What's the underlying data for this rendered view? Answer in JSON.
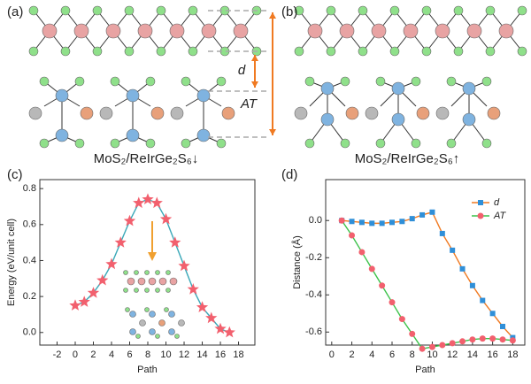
{
  "panels": {
    "a": {
      "label": "(a)",
      "d_label": "d",
      "at_label": "AT",
      "caption": "MoS₂/ReIrGe₂S₆↓"
    },
    "b": {
      "label": "(b)",
      "caption": "MoS₂/ReIrGe₂S₆↑"
    },
    "c": {
      "label": "(c)"
    },
    "d": {
      "label": "(d)"
    }
  },
  "chart_data": [
    {
      "type": "line",
      "xlabel": "Path",
      "ylabel": "Energy (eV/unit cell)",
      "x": [
        0,
        1,
        2,
        3,
        4,
        5,
        6,
        7,
        8,
        9,
        10,
        11,
        12,
        13,
        14,
        15,
        16,
        17
      ],
      "series": [
        {
          "name": null,
          "color": "#3aa8b8",
          "marker_color": "#f2606e",
          "values": [
            0.15,
            0.17,
            0.22,
            0.29,
            0.38,
            0.5,
            0.62,
            0.72,
            0.74,
            0.72,
            0.63,
            0.5,
            0.37,
            0.24,
            0.14,
            0.08,
            0.02,
            0.0
          ]
        }
      ],
      "xlim": [
        -3.9,
        19.8
      ],
      "ylim": [
        -0.07,
        0.85
      ],
      "xticks": [
        -2,
        0,
        2,
        4,
        6,
        8,
        10,
        12,
        14,
        16,
        18
      ],
      "yticks": [
        {
          "value": 0,
          "label": "0.0"
        },
        0.2,
        0.4,
        0.6,
        0.8
      ]
    },
    {
      "type": "line",
      "xlabel": "Path",
      "ylabel": "Distance (Å)",
      "x": [
        1,
        2,
        3,
        4,
        5,
        6,
        7,
        8,
        9,
        10,
        11,
        12,
        13,
        14,
        15,
        16,
        17,
        18
      ],
      "series": [
        {
          "name": "d",
          "color": "#f07a22",
          "marker_color": "#2f8fd8",
          "marker": "square",
          "values": [
            0,
            -0.005,
            -0.01,
            -0.015,
            -0.015,
            -0.01,
            -0.005,
            0.01,
            0.03,
            0.045,
            -0.07,
            -0.16,
            -0.26,
            -0.35,
            -0.43,
            -0.5,
            -0.57,
            -0.63
          ]
        },
        {
          "name": "AT",
          "color": "#3cc24a",
          "marker_color": "#f2606e",
          "marker": "circle",
          "values": [
            0,
            -0.08,
            -0.17,
            -0.26,
            -0.35,
            -0.44,
            -0.53,
            -0.61,
            -0.69,
            -0.68,
            -0.67,
            -0.66,
            -0.65,
            -0.64,
            -0.635,
            -0.635,
            -0.64,
            -0.645
          ]
        }
      ],
      "xlim": [
        -0.6,
        19.2
      ],
      "ylim": [
        -0.67,
        0.22
      ],
      "xticks": [
        0,
        2,
        4,
        6,
        8,
        10,
        12,
        14,
        16,
        18
      ],
      "yticks": [
        {
          "value": 0,
          "label": "0.0"
        },
        -0.2,
        -0.4,
        -0.6
      ],
      "legend": "upper right"
    }
  ]
}
